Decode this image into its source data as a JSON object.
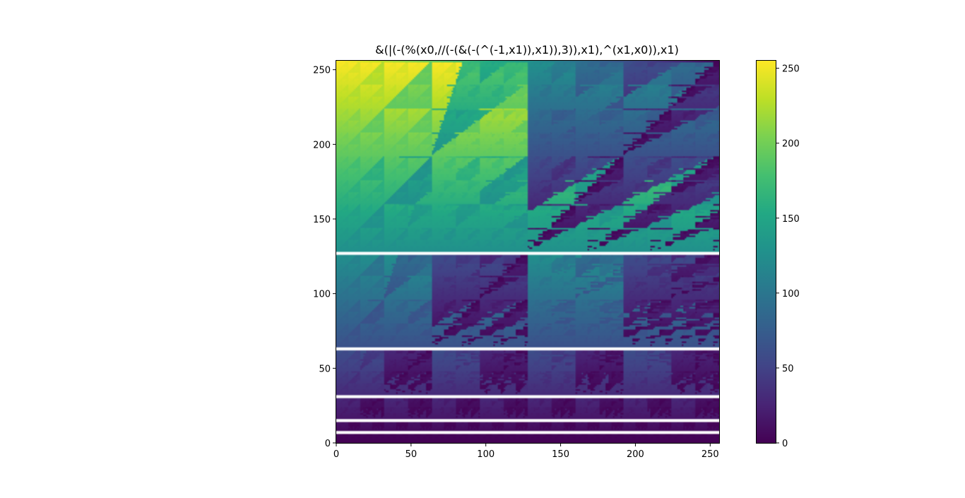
{
  "chart_data": {
    "type": "heatmap",
    "title": "&(|(-(%(x0,//(-(&(-(^(-1,x1)),x1)),3)),x1),^(x1,x0)),x1)",
    "xlabel": "",
    "ylabel": "",
    "xlim": [
      0,
      256
    ],
    "ylim": [
      0,
      256
    ],
    "x_ticks": [
      0,
      50,
      100,
      150,
      200,
      250
    ],
    "y_ticks": [
      0,
      50,
      100,
      150,
      200,
      250
    ],
    "grid": false,
    "colormap": "viridis",
    "colorbar": {
      "vmin": 0,
      "vmax": 255,
      "ticks": [
        0,
        50,
        100,
        150,
        200,
        250
      ]
    },
    "blank_rows": [
      6,
      7,
      14,
      15,
      30,
      31,
      62,
      63,
      126,
      127
    ],
    "description_levels": [
      {
        "rows": [
          128,
          255
        ],
        "base": 150,
        "description": "green-yellow upper half"
      },
      {
        "rows": [
          64,
          125
        ],
        "base": 90,
        "description": "teal-blue band"
      },
      {
        "rows": [
          32,
          61
        ],
        "base": 45,
        "description": "purple band"
      },
      {
        "rows": [
          16,
          29
        ],
        "base": 25,
        "description": "dark purple band"
      },
      {
        "rows": [
          0,
          13
        ],
        "base": 10,
        "description": "darkest bottom band"
      }
    ]
  },
  "colors": {
    "viridis_low": "#440154",
    "viridis_mid": "#21918c",
    "viridis_high": "#fde725",
    "axis": "#000000",
    "background": "#ffffff"
  }
}
